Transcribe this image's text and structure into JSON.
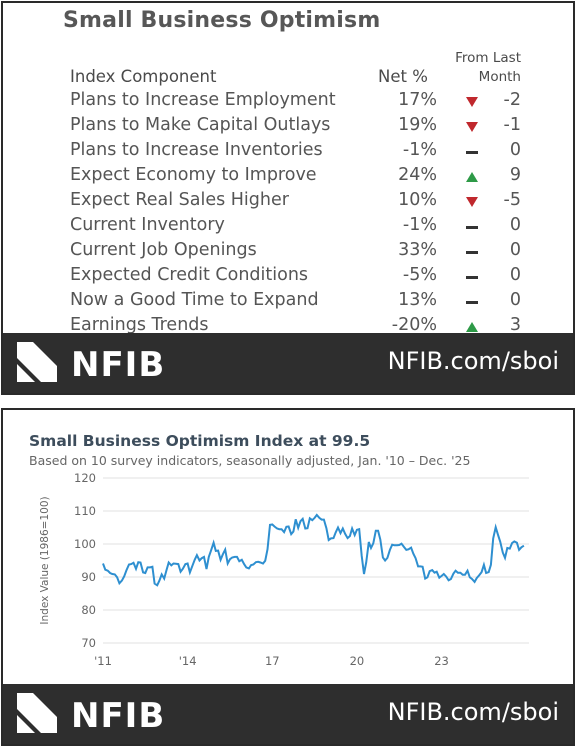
{
  "table_panel": {
    "title": "Small Business Optimism",
    "col_component": "Index Component",
    "col_net": "Net %",
    "col_change_line1": "From Last",
    "col_change_line2": "Month",
    "rows": [
      {
        "component": "Plans to Increase Employment",
        "net": "17%",
        "direction": "down",
        "change": "-2"
      },
      {
        "component": "Plans to Make Capital Outlays",
        "net": "19%",
        "direction": "down",
        "change": "-1"
      },
      {
        "component": "Plans to Increase Inventories",
        "net": "-1%",
        "direction": "flat",
        "change": "0"
      },
      {
        "component": "Expect Economy to Improve",
        "net": "24%",
        "direction": "up",
        "change": "9"
      },
      {
        "component": "Expect Real Sales Higher",
        "net": "10%",
        "direction": "down",
        "change": "-5"
      },
      {
        "component": "Current Inventory",
        "net": "-1%",
        "direction": "flat",
        "change": "0"
      },
      {
        "component": "Current Job Openings",
        "net": "33%",
        "direction": "flat",
        "change": "0"
      },
      {
        "component": "Expected Credit Conditions",
        "net": "-5%",
        "direction": "flat",
        "change": "0"
      },
      {
        "component": "Now a Good Time to Expand",
        "net": "13%",
        "direction": "flat",
        "change": "0"
      },
      {
        "component": "Earnings Trends",
        "net": "-20%",
        "direction": "up",
        "change": "3"
      }
    ],
    "footer": {
      "logo_text": "NFIB",
      "url": "NFIB.com/sboi"
    }
  },
  "chart_panel": {
    "footer": {
      "logo_text": "NFIB",
      "url": "NFIB.com/sboi"
    }
  },
  "colors": {
    "down": "#c0282d",
    "up": "#2e9a47",
    "flat": "#333333",
    "line": "#2e8fd0",
    "footer_bg": "#2e2e2e"
  },
  "chart_data": {
    "type": "line",
    "title": "Small Business Optimism Index at 99.5",
    "subtitle": "Based on 10 survey indicators, seasonally adjusted, Jan. '10 – Dec. '25",
    "xlabel": "",
    "ylabel": "Index Value (1986=100)",
    "ylim": [
      70,
      120
    ],
    "xlim": [
      2011,
      2026.1
    ],
    "y_ticks": [
      "120",
      "110",
      "100",
      "90",
      "80",
      "70"
    ],
    "x_tick_labels": [
      "'11",
      "'14",
      "17",
      "20",
      "23"
    ],
    "x_tick_years": [
      2011,
      2014,
      2017,
      2020,
      2023
    ],
    "grid": "horizontal",
    "series": [
      {
        "x": [
          2011.0,
          2011.08,
          2011.17,
          2011.25,
          2011.33,
          2011.42,
          2011.5,
          2011.58,
          2011.67,
          2011.75,
          2011.83,
          2011.92,
          2012.0,
          2012.08,
          2012.17,
          2012.25,
          2012.33,
          2012.42,
          2012.5,
          2012.58,
          2012.67,
          2012.75,
          2012.83,
          2012.92,
          2013.0,
          2013.08,
          2013.17,
          2013.25,
          2013.33,
          2013.42,
          2013.5,
          2013.58,
          2013.67,
          2013.75,
          2013.83,
          2013.92,
          2014.0,
          2014.08,
          2014.17,
          2014.25,
          2014.33,
          2014.42,
          2014.5,
          2014.58,
          2014.67,
          2014.75,
          2014.83,
          2014.92,
          2015.0,
          2015.08,
          2015.17,
          2015.25,
          2015.33,
          2015.42,
          2015.5,
          2015.58,
          2015.67,
          2015.75,
          2015.83,
          2015.92,
          2016.0,
          2016.08,
          2016.17,
          2016.25,
          2016.33,
          2016.42,
          2016.5,
          2016.58,
          2016.67,
          2016.75,
          2016.83,
          2016.92,
          2017.0,
          2017.08,
          2017.17,
          2017.25,
          2017.33,
          2017.42,
          2017.5,
          2017.58,
          2017.67,
          2017.75,
          2017.83,
          2017.92,
          2018.0,
          2018.08,
          2018.17,
          2018.25,
          2018.33,
          2018.42,
          2018.5,
          2018.58,
          2018.67,
          2018.75,
          2018.83,
          2018.92,
          2019.0,
          2019.08,
          2019.17,
          2019.25,
          2019.33,
          2019.42,
          2019.5,
          2019.58,
          2019.67,
          2019.75,
          2019.83,
          2019.92,
          2020.0,
          2020.08,
          2020.17,
          2020.25,
          2020.33,
          2020.42,
          2020.5,
          2020.58,
          2020.67,
          2020.75,
          2020.83,
          2020.92,
          2021.0,
          2021.08,
          2021.17,
          2021.25,
          2021.33,
          2021.42,
          2021.5,
          2021.58,
          2021.67,
          2021.75,
          2021.83,
          2021.92,
          2022.0,
          2022.08,
          2022.17,
          2022.25,
          2022.33,
          2022.42,
          2022.5,
          2022.58,
          2022.67,
          2022.75,
          2022.83,
          2022.92,
          2023.0,
          2023.08,
          2023.17,
          2023.25,
          2023.33,
          2023.42,
          2023.5,
          2023.58,
          2023.67,
          2023.75,
          2023.83,
          2023.92,
          2024.0,
          2024.08,
          2024.17,
          2024.25,
          2024.33,
          2024.42,
          2024.5,
          2024.58,
          2024.67,
          2024.75,
          2024.83,
          2024.92,
          2025.0,
          2025.08,
          2025.17,
          2025.25,
          2025.33,
          2025.42,
          2025.5,
          2025.58,
          2025.67,
          2025.75,
          2025.83,
          2025.92
        ],
        "y": [
          94.1,
          92.2,
          91.9,
          91.2,
          90.9,
          90.8,
          89.9,
          88.1,
          88.9,
          90.2,
          92.0,
          93.8,
          93.9,
          94.3,
          92.5,
          94.5,
          94.4,
          91.4,
          91.2,
          92.9,
          92.9,
          93.1,
          88.0,
          87.5,
          88.9,
          90.8,
          89.5,
          92.1,
          94.4,
          93.5,
          94.1,
          94.0,
          93.9,
          91.6,
          92.5,
          93.9,
          94.1,
          91.4,
          93.4,
          95.2,
          96.6,
          95.0,
          95.7,
          96.1,
          92.4,
          96.1,
          98.1,
          100.4,
          97.9,
          98.0,
          95.2,
          96.9,
          98.3,
          94.1,
          95.4,
          95.9,
          96.1,
          96.1,
          94.8,
          95.2,
          93.9,
          92.9,
          92.6,
          93.6,
          93.8,
          94.5,
          94.6,
          94.4,
          94.1,
          94.9,
          98.4,
          105.8,
          105.9,
          105.3,
          104.7,
          104.5,
          104.5,
          103.6,
          105.2,
          105.3,
          103.0,
          103.8,
          107.5,
          104.9,
          106.9,
          107.6,
          104.7,
          104.8,
          107.8,
          107.2,
          107.9,
          108.8,
          107.9,
          107.4,
          107.4,
          104.8,
          101.2,
          101.7,
          101.8,
          103.5,
          105.0,
          103.3,
          104.7,
          103.1,
          101.8,
          102.4,
          104.7,
          102.7,
          104.3,
          104.5,
          96.4,
          90.9,
          94.4,
          100.6,
          98.8,
          100.2,
          104.0,
          104.0,
          101.4,
          95.9,
          95.0,
          95.8,
          98.2,
          99.8,
          99.6,
          99.6,
          99.7,
          100.1,
          99.1,
          98.2,
          98.4,
          98.9,
          97.1,
          95.7,
          93.2,
          93.2,
          93.1,
          89.5,
          89.9,
          91.8,
          92.1,
          91.3,
          91.6,
          89.8,
          90.3,
          90.9,
          90.1,
          89.0,
          89.4,
          91.0,
          91.9,
          91.3,
          91.3,
          90.7,
          90.7,
          91.9,
          89.9,
          89.4,
          88.5,
          89.7,
          90.5,
          91.5,
          93.7,
          91.2,
          91.5,
          93.7,
          101.7,
          105.1,
          102.8,
          100.7,
          97.4,
          95.8,
          98.8,
          98.6,
          100.3,
          100.8,
          100.4,
          98.2,
          99.0,
          99.5
        ]
      }
    ]
  }
}
